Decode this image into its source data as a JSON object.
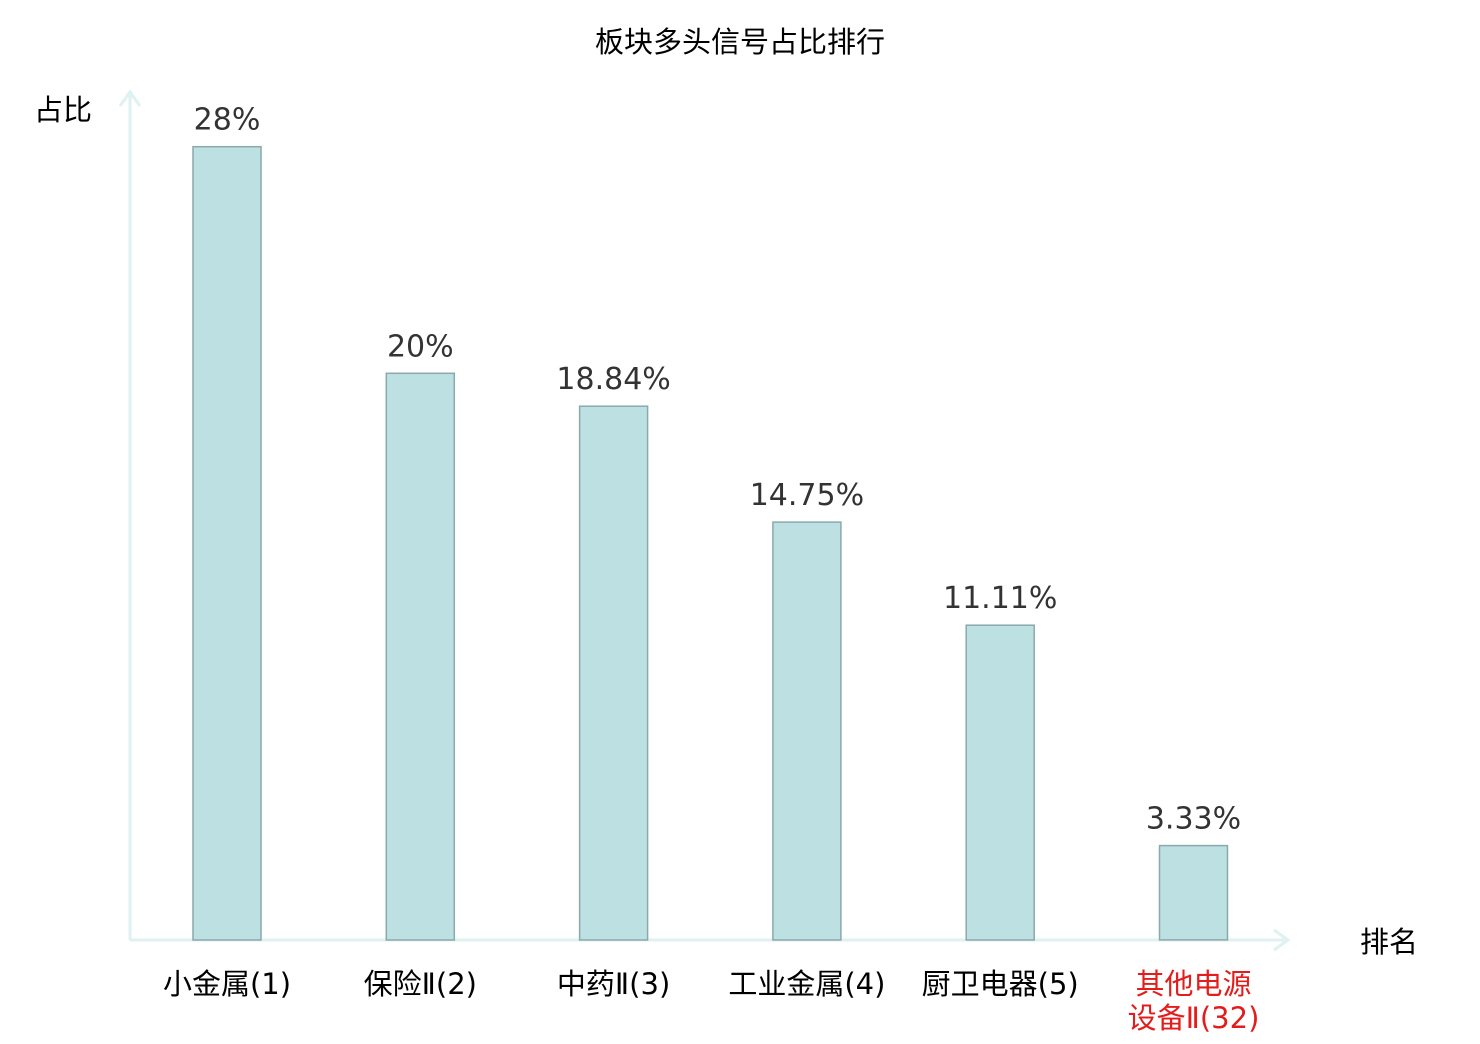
{
  "chart_data": {
    "type": "bar",
    "title": "板块多头信号占比排行",
    "ylabel": "占比",
    "xlabel": "排名",
    "ylim": [
      0,
      30
    ],
    "grid": false,
    "categories": [
      {
        "lines": [
          "小金属(1)"
        ],
        "highlight": false
      },
      {
        "lines": [
          "保险Ⅱ(2)"
        ],
        "highlight": false
      },
      {
        "lines": [
          "中药Ⅱ(3)"
        ],
        "highlight": false
      },
      {
        "lines": [
          "工业金属(4)"
        ],
        "highlight": false
      },
      {
        "lines": [
          "厨卫电器(5)"
        ],
        "highlight": false
      },
      {
        "lines": [
          "其他电源",
          "设备Ⅱ(32)"
        ],
        "highlight": true
      }
    ],
    "values": [
      28,
      20,
      18.84,
      14.75,
      11.11,
      3.33
    ],
    "value_labels": [
      "28%",
      "20%",
      "18.84%",
      "14.75%",
      "11.11%",
      "3.33%"
    ],
    "colors": {
      "bar_fill": "#bde0e3",
      "bar_stroke": "#8aa9ab",
      "axis": "#dff1f0",
      "text": "#000000",
      "value_text": "#333333",
      "highlight_text": "#e31c1c"
    }
  }
}
